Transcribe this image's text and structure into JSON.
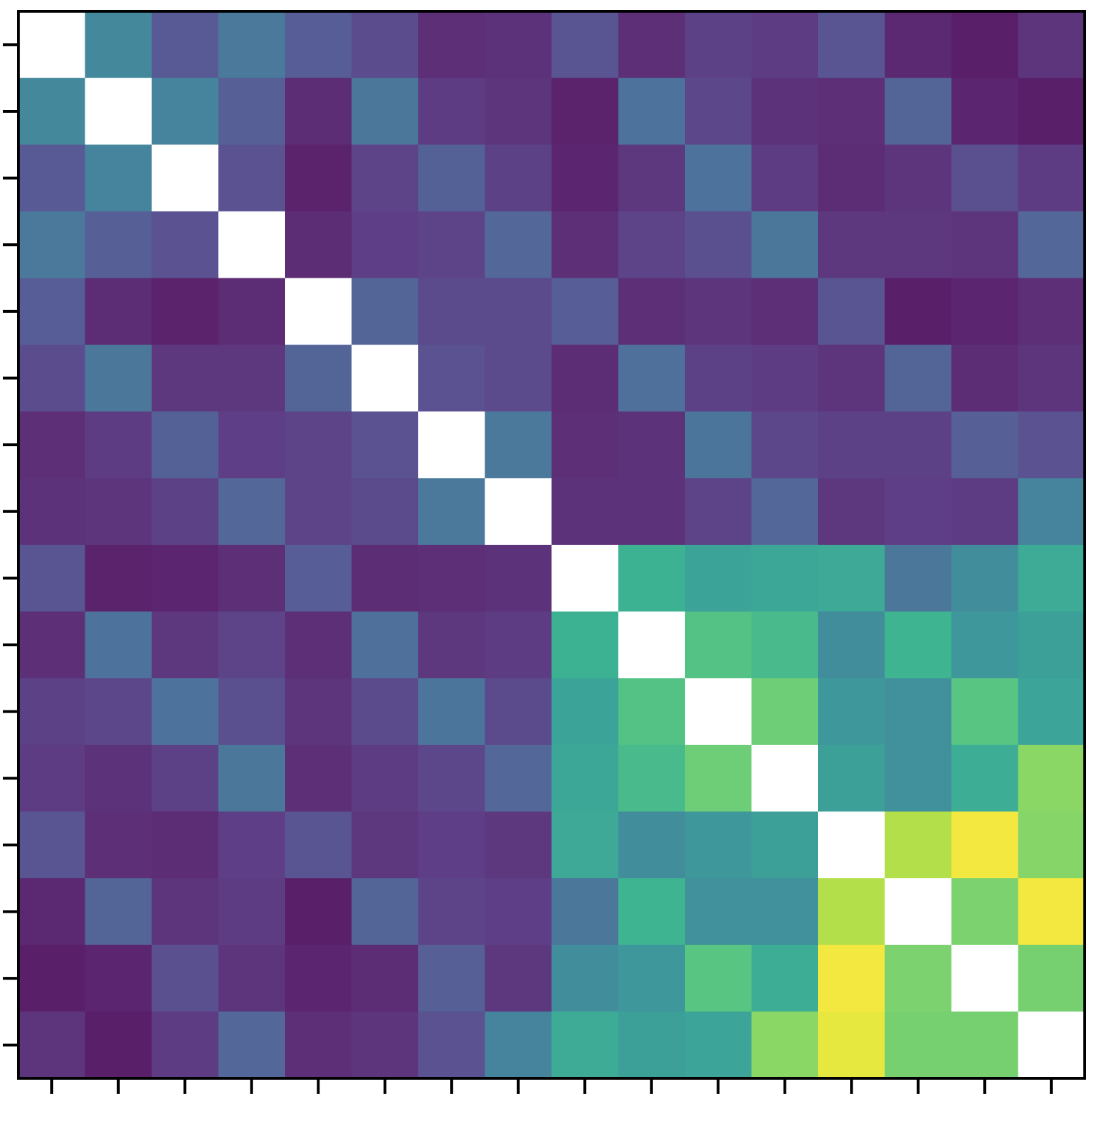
{
  "chart_data": {
    "type": "heatmap",
    "title": "",
    "xlabel": "",
    "ylabel": "",
    "rows": 16,
    "cols": 16,
    "x_tick_count": 16,
    "y_tick_count": 16,
    "colormap": "viridis",
    "value_range": [
      0,
      1
    ],
    "diagonal_color": "#ffffff",
    "diagonal_masked": true,
    "grid": false,
    "legend": "none",
    "values": [
      [
        null,
        0.4,
        0.2,
        0.33,
        0.21,
        0.15,
        0.05,
        0.06,
        0.18,
        0.05,
        0.11,
        0.09,
        0.18,
        0.03,
        0.0,
        0.07
      ],
      [
        0.4,
        null,
        0.38,
        0.22,
        0.04,
        0.32,
        0.09,
        0.07,
        0.01,
        0.3,
        0.13,
        0.06,
        0.05,
        0.24,
        0.02,
        0.0
      ],
      [
        0.2,
        0.38,
        null,
        0.17,
        0.01,
        0.12,
        0.23,
        0.11,
        0.02,
        0.08,
        0.3,
        0.09,
        0.04,
        0.07,
        0.16,
        0.09
      ],
      [
        0.33,
        0.22,
        0.17,
        null,
        0.04,
        0.1,
        0.12,
        0.25,
        0.05,
        0.12,
        0.16,
        0.32,
        0.08,
        0.08,
        0.07,
        0.25
      ],
      [
        0.21,
        0.04,
        0.01,
        0.04,
        null,
        0.24,
        0.14,
        0.14,
        0.21,
        0.05,
        0.07,
        0.05,
        0.18,
        0.0,
        0.02,
        0.05
      ],
      [
        0.15,
        0.32,
        0.08,
        0.08,
        0.24,
        null,
        0.17,
        0.14,
        0.04,
        0.29,
        0.11,
        0.09,
        0.07,
        0.24,
        0.04,
        0.07
      ],
      [
        0.05,
        0.09,
        0.23,
        0.1,
        0.12,
        0.17,
        null,
        0.33,
        0.05,
        0.06,
        0.31,
        0.13,
        0.11,
        0.11,
        0.22,
        0.17
      ],
      [
        0.06,
        0.07,
        0.11,
        0.25,
        0.12,
        0.14,
        0.33,
        null,
        0.06,
        0.06,
        0.12,
        0.25,
        0.08,
        0.1,
        0.09,
        0.38
      ],
      [
        0.18,
        0.01,
        0.02,
        0.05,
        0.21,
        0.04,
        0.05,
        0.06,
        null,
        0.6,
        0.52,
        0.54,
        0.55,
        0.32,
        0.42,
        0.56
      ],
      [
        0.05,
        0.3,
        0.08,
        0.12,
        0.05,
        0.29,
        0.08,
        0.09,
        0.6,
        null,
        0.68,
        0.64,
        0.42,
        0.61,
        0.47,
        0.51
      ],
      [
        0.11,
        0.13,
        0.3,
        0.16,
        0.07,
        0.14,
        0.31,
        0.14,
        0.52,
        0.68,
        null,
        0.74,
        0.47,
        0.44,
        0.69,
        0.53
      ],
      [
        0.09,
        0.06,
        0.11,
        0.32,
        0.05,
        0.09,
        0.13,
        0.25,
        0.54,
        0.64,
        0.74,
        null,
        0.51,
        0.44,
        0.58,
        0.8
      ],
      [
        0.18,
        0.05,
        0.04,
        0.1,
        0.18,
        0.08,
        0.1,
        0.08,
        0.55,
        0.42,
        0.47,
        0.51,
        null,
        0.87,
        0.98,
        0.79
      ],
      [
        0.03,
        0.24,
        0.07,
        0.09,
        0.0,
        0.24,
        0.12,
        0.1,
        0.32,
        0.61,
        0.44,
        0.44,
        0.87,
        null,
        0.77,
        0.98
      ],
      [
        0.0,
        0.02,
        0.16,
        0.07,
        0.02,
        0.04,
        0.22,
        0.08,
        0.42,
        0.47,
        0.69,
        0.58,
        0.98,
        0.77,
        null,
        0.76
      ],
      [
        0.07,
        0.0,
        0.09,
        0.25,
        0.05,
        0.07,
        0.17,
        0.38,
        0.56,
        0.51,
        0.53,
        0.8,
        0.96,
        0.76,
        0.76,
        null
      ]
    ]
  }
}
